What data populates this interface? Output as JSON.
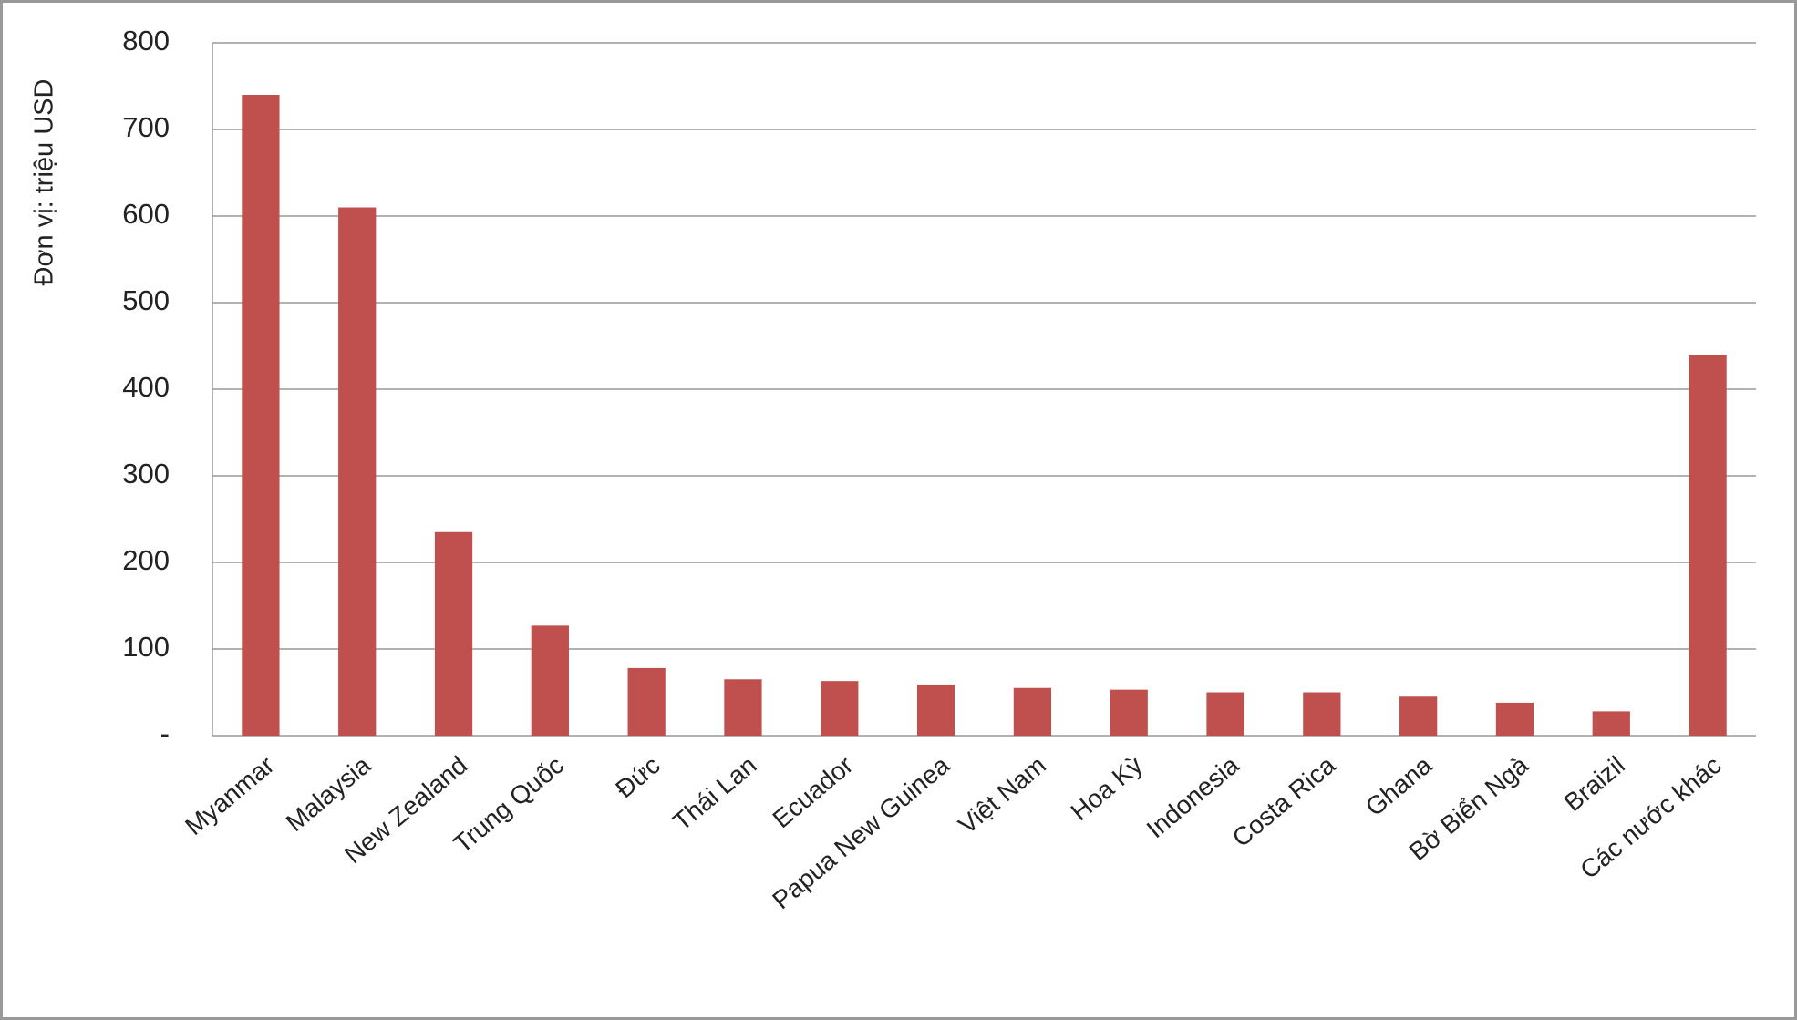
{
  "chart_data": {
    "type": "bar",
    "y_label": "Đơn vị: triệu USD",
    "categories": [
      "Myanmar",
      "Malaysia",
      "New Zealand",
      "Trung Quốc",
      "Đức",
      "Thái Lan",
      "Ecuador",
      "Papua New Guinea",
      "Việt Nam",
      "Hoa Kỳ",
      "Indonesia",
      "Costa Rica",
      "Ghana",
      "Bờ Biển Ngà",
      "Braizil",
      "Các nước khác"
    ],
    "values": [
      740,
      610,
      235,
      127,
      78,
      65,
      63,
      59,
      55,
      53,
      50,
      50,
      45,
      38,
      28,
      440
    ],
    "color": "#c0504d",
    "ylim": [
      0,
      800
    ],
    "yticks": [
      {
        "value": 0,
        "label": "-"
      },
      100,
      200,
      300,
      400,
      500,
      600,
      700,
      800
    ],
    "grid": true
  }
}
